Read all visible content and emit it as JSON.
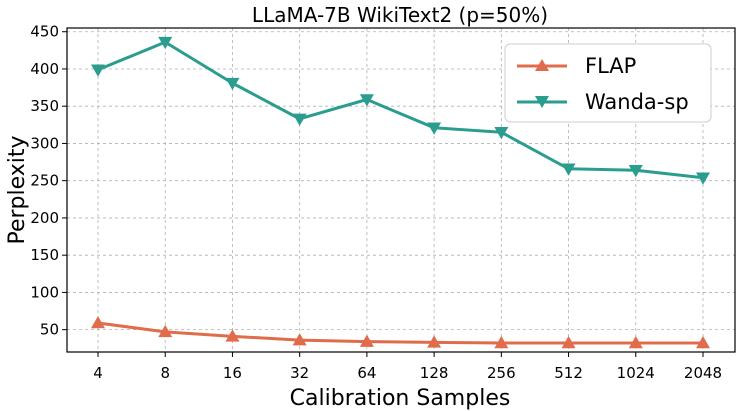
{
  "chart_data": {
    "type": "line",
    "title": "LLaMA-7B WikiText2 (p=50%)",
    "xlabel": "Calibration Samples",
    "ylabel": "Perplexity",
    "categories": [
      "4",
      "8",
      "16",
      "32",
      "64",
      "128",
      "256",
      "512",
      "1024",
      "2048"
    ],
    "ylim": [
      20,
      455
    ],
    "yticks": [
      50,
      100,
      150,
      200,
      250,
      300,
      350,
      400,
      450
    ],
    "grid": true,
    "legend_position": "top-right",
    "series": [
      {
        "name": "FLAP",
        "color": "#e06c4c",
        "marker": "triangle-up",
        "values": [
          59,
          47,
          41,
          36,
          34,
          33,
          32,
          32,
          32,
          32
        ]
      },
      {
        "name": "Wanda-sp",
        "color": "#2a9d8f",
        "marker": "triangle-down",
        "values": [
          399,
          436,
          381,
          333,
          359,
          321,
          315,
          266,
          264,
          254
        ]
      }
    ]
  }
}
